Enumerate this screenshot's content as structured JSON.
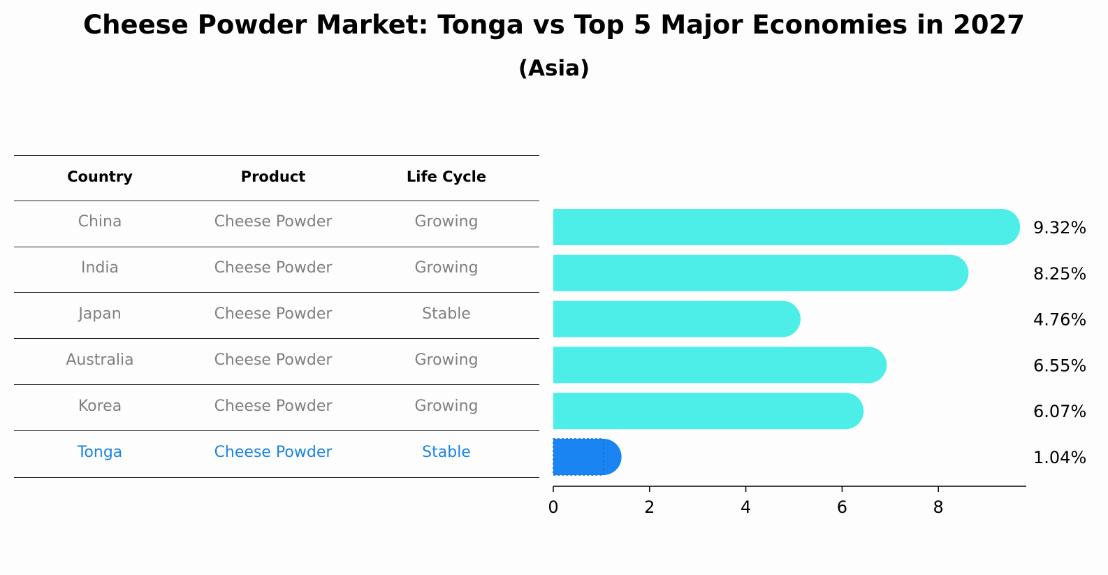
{
  "title": "Cheese Powder Market: Tonga vs Top 5 Major Economies in 2027",
  "subtitle": "(Asia)",
  "table": {
    "headers": [
      "Country",
      "Product",
      "Life Cycle"
    ],
    "rows": [
      {
        "country": "China",
        "product": "Cheese Powder",
        "life_cycle": "Growing"
      },
      {
        "country": "India",
        "product": "Cheese Powder",
        "life_cycle": "Growing"
      },
      {
        "country": "Japan",
        "product": "Cheese Powder",
        "life_cycle": "Stable"
      },
      {
        "country": "Australia",
        "product": "Cheese Powder",
        "life_cycle": "Growing"
      },
      {
        "country": "Korea",
        "product": "Cheese Powder",
        "life_cycle": "Growing"
      },
      {
        "country": "Tonga",
        "product": "Cheese Powder",
        "life_cycle": "Stable"
      }
    ],
    "highlight_row": "Tonga"
  },
  "chart_data": {
    "type": "bar",
    "orientation": "horizontal",
    "categories": [
      "China",
      "India",
      "Japan",
      "Australia",
      "Korea",
      "Tonga"
    ],
    "values": [
      9.32,
      8.25,
      4.76,
      6.55,
      6.07,
      1.04
    ],
    "value_labels": [
      "9.32%",
      "8.25%",
      "4.76%",
      "6.55%",
      "6.07%",
      "1.04%"
    ],
    "xlim": [
      0,
      9.8
    ],
    "xticks": [
      0,
      2,
      4,
      6,
      8
    ],
    "highlight": "Tonga",
    "colors": {
      "default": "#4deee8",
      "highlight": "#1a85f2"
    }
  }
}
